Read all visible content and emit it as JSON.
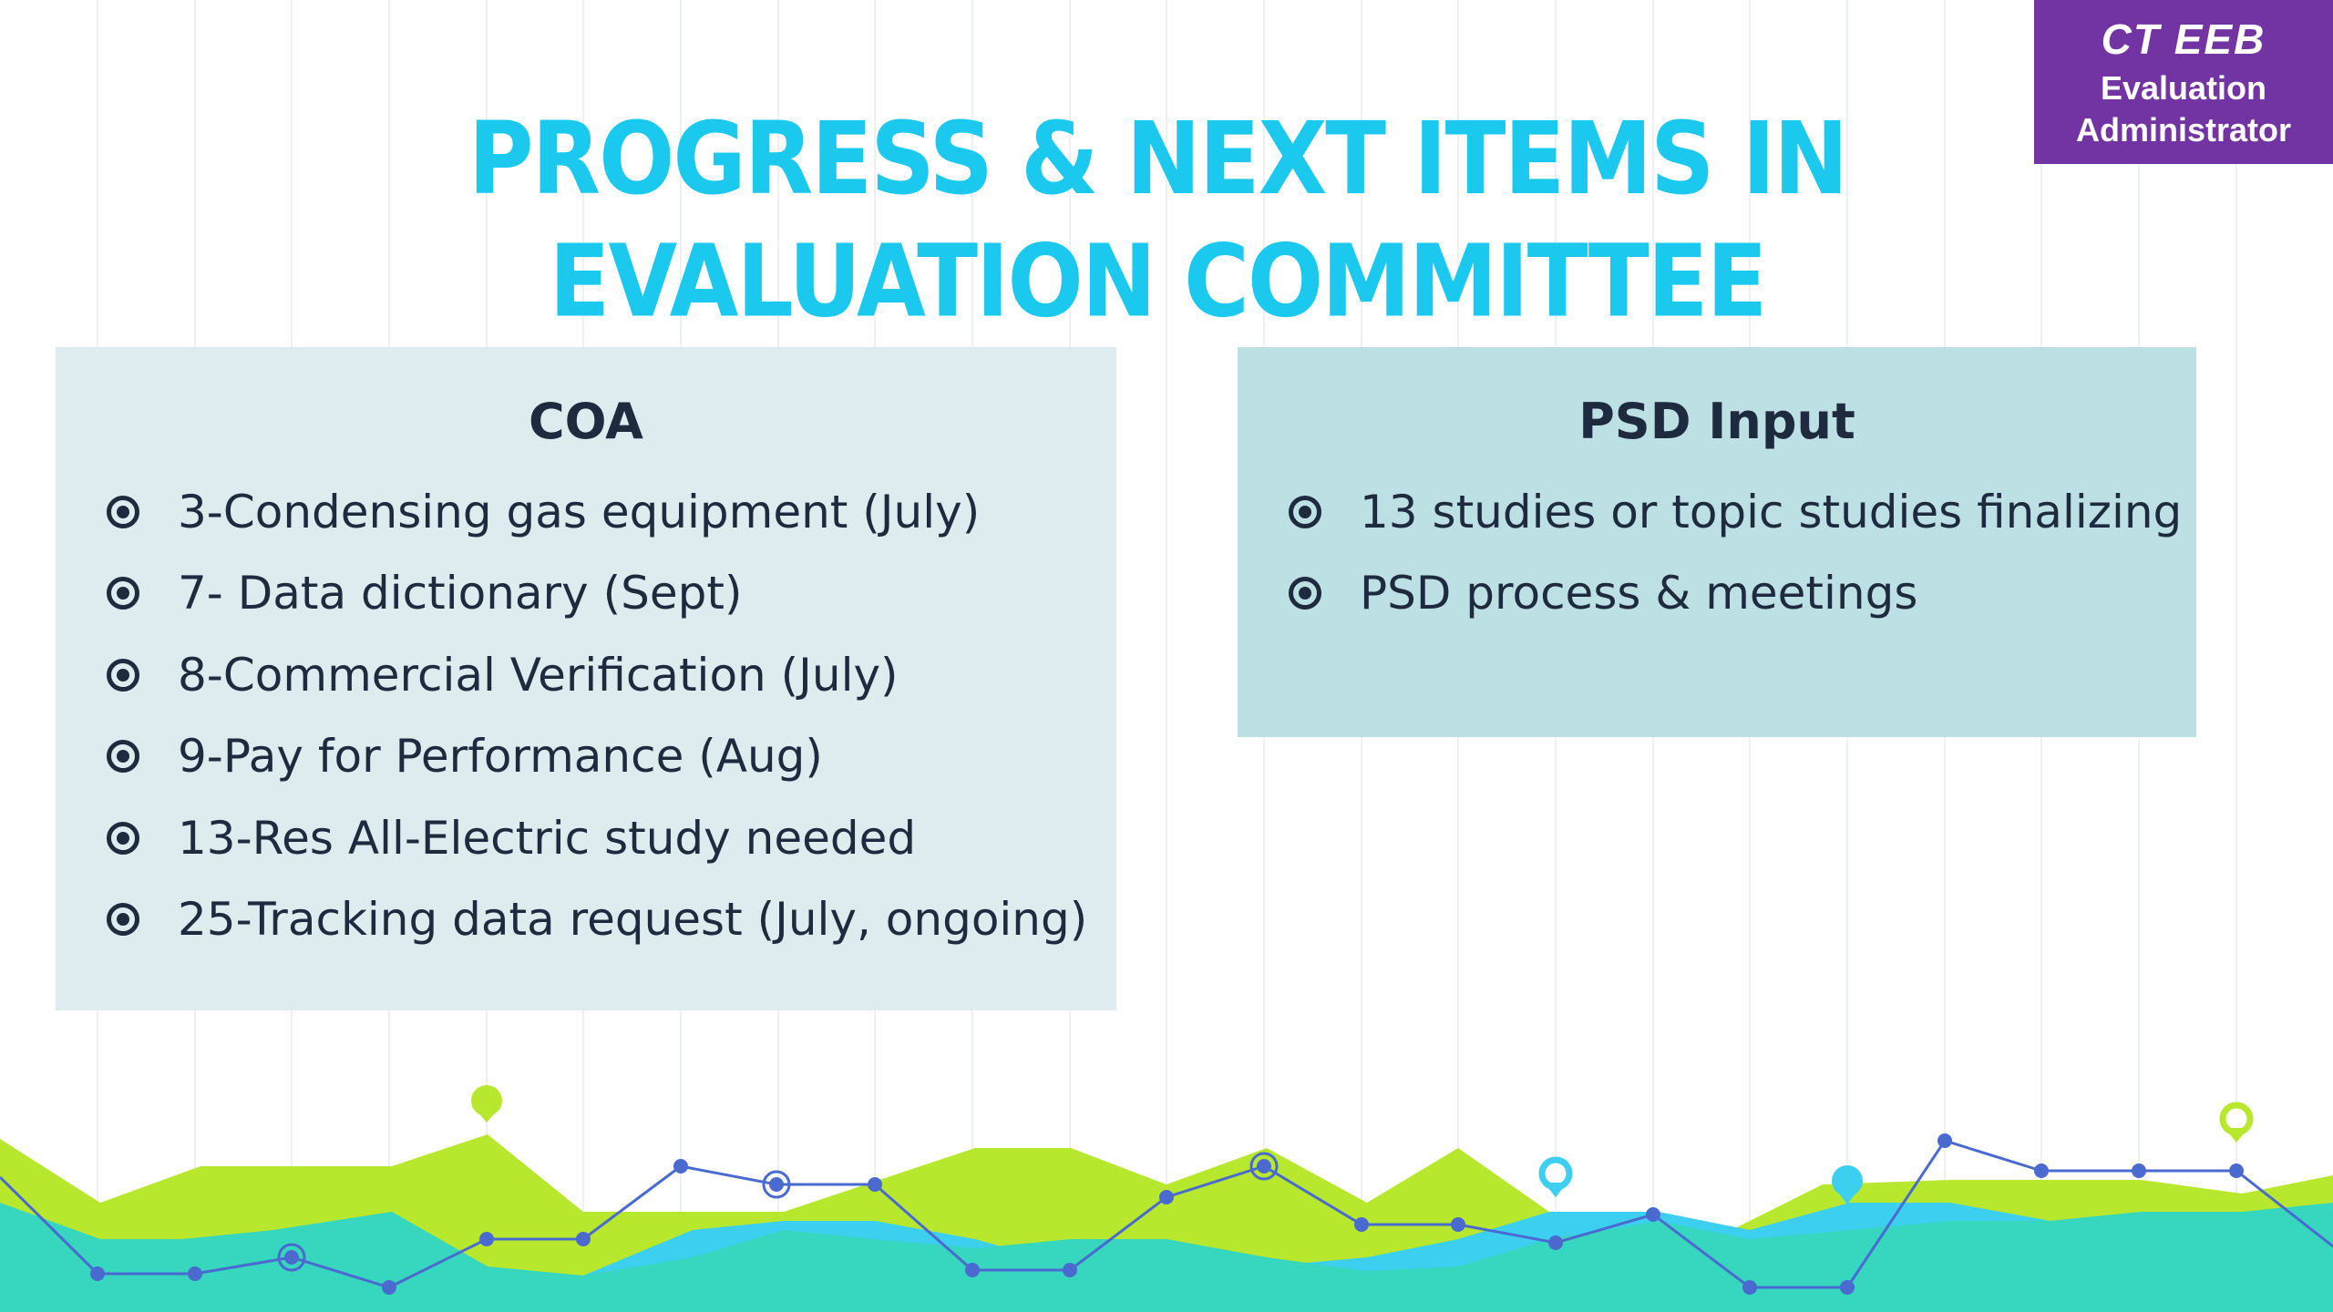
{
  "badge": {
    "line1": "CT EEB",
    "line2": "Evaluation",
    "line3": "Administrator"
  },
  "title": "PROGRESS & NEXT ITEMS IN EVALUATION COMMITTEE",
  "coa": {
    "heading": "COA",
    "items": [
      "3-Condensing gas equipment (July)",
      "7- Data dictionary (Sept)",
      "8-Commercial Verification (July)",
      "9-Pay for Performance (Aug)",
      "13-Res All-Electric study needed",
      "25-Tracking data request (July, ongoing)"
    ]
  },
  "psd": {
    "heading": "PSD Input",
    "items": [
      "13 studies or topic studies finalizing",
      "PSD process & meetings"
    ]
  },
  "colors": {
    "title": "#1bc8ee",
    "badge": "#7233a3",
    "panel_coa": "#deecef",
    "panel_psd": "#bde0e4",
    "text": "#1e2a3d",
    "lime": "#b7e82e",
    "teal": "#36d6bf",
    "sky": "#3dcff0",
    "line": "#4a6ad0"
  },
  "icons": [
    "bullet-icon",
    "map-pin-icon"
  ]
}
